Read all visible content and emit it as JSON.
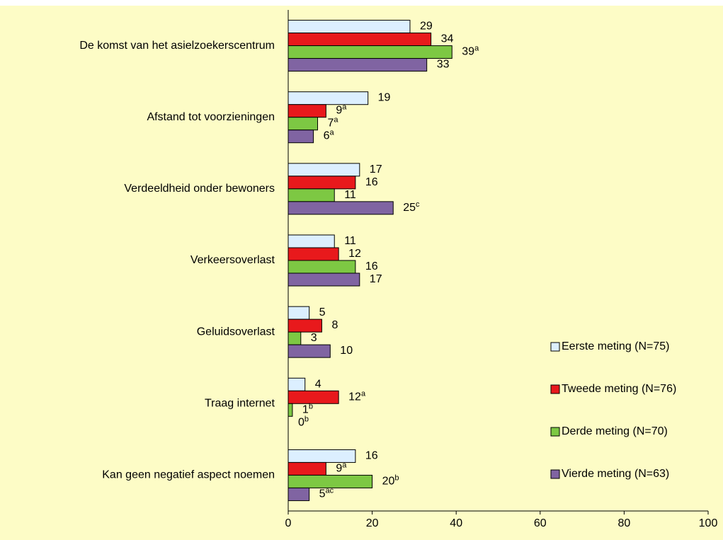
{
  "chart_data": {
    "type": "hbar",
    "categories": [
      "De komst van het asielzoekerscentrum",
      "Afstand tot voorzieningen",
      "Verdeeldheid onder bewoners",
      "Verkeersoverlast",
      "Geluidsoverlast",
      "Traag internet",
      "Kan geen negatief aspect noemen"
    ],
    "series": [
      {
        "name": "Eerste meting (N=75)",
        "color": "#dcefff",
        "values": [
          29,
          19,
          17,
          11,
          5,
          4,
          16
        ],
        "value_labels": [
          "29",
          "19",
          "17",
          "11",
          "5",
          "4",
          "16"
        ]
      },
      {
        "name": "Tweede meting (N=76)",
        "color": "#e8191c",
        "values": [
          34,
          9,
          16,
          12,
          8,
          12,
          9
        ],
        "value_labels": [
          "34",
          "9a",
          "16",
          "12",
          "8",
          "12a",
          "9a"
        ]
      },
      {
        "name": "Derde meting (N=70)",
        "color": "#7dc843",
        "values": [
          39,
          7,
          11,
          16,
          3,
          1,
          20
        ],
        "value_labels": [
          "39a",
          "7a",
          "11",
          "16",
          "3",
          "1b",
          "20b"
        ]
      },
      {
        "name": "Vierde meting (N=63)",
        "color": "#8064a2",
        "values": [
          33,
          6,
          25,
          17,
          10,
          0,
          5
        ],
        "value_labels": [
          "33",
          "6a",
          "25c",
          "17",
          "10",
          "0b",
          "5ac"
        ]
      }
    ],
    "xlim": [
      0,
      100
    ],
    "xticks": [
      0,
      20,
      40,
      60,
      80,
      100
    ],
    "legend": "lower right"
  }
}
